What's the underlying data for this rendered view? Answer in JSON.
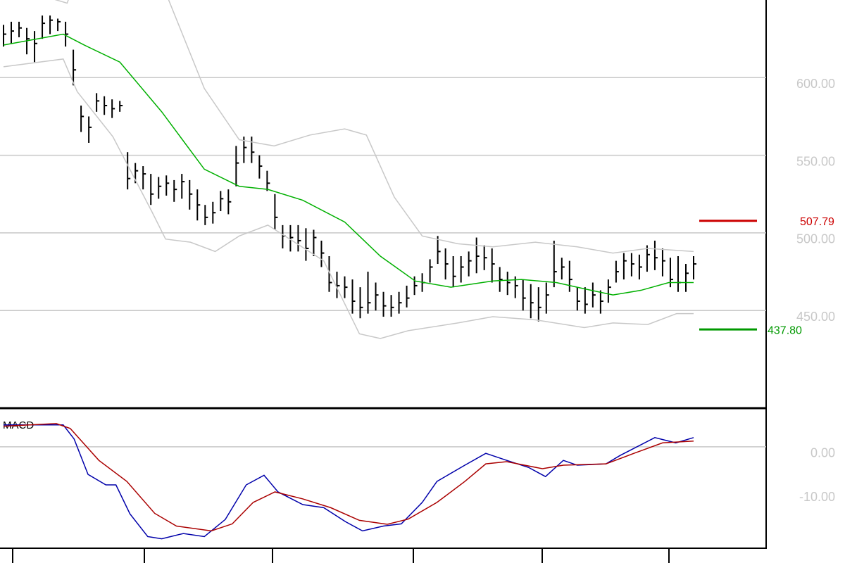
{
  "chart_data": [
    {
      "type": "ohlc",
      "xlim": [
        0,
        89
      ],
      "ylim": [
        388,
        650
      ],
      "yticks": [
        {
          "value": 450,
          "label": "450.00"
        },
        {
          "value": 500,
          "label": "500.00"
        },
        {
          "value": 550,
          "label": "550.00"
        },
        {
          "value": 600,
          "label": "600.00"
        }
      ],
      "grid": true,
      "color": "#000000",
      "high": [
        634,
        636,
        636,
        632,
        630,
        640,
        640,
        638,
        636,
        618,
        582,
        575,
        590,
        588,
        586,
        585,
        552,
        545,
        543,
        538,
        536,
        537,
        534,
        538,
        534,
        528,
        518,
        520,
        527,
        528,
        556,
        562,
        562,
        550,
        540,
        525,
        505,
        505,
        505,
        503,
        502,
        495,
        485,
        475,
        472,
        470,
        465,
        475,
        468,
        462,
        460,
        462,
        466,
        472,
        474,
        483,
        498,
        490,
        485,
        485,
        488,
        497,
        492,
        490,
        478,
        475,
        472,
        470,
        467,
        465,
        468,
        495,
        484,
        482,
        465,
        465,
        468,
        463,
        470,
        482,
        487,
        487,
        486,
        492,
        495,
        490,
        484,
        485,
        480,
        485
      ],
      "low": [
        620,
        622,
        626,
        615,
        610,
        625,
        628,
        630,
        620,
        595,
        565,
        558,
        578,
        576,
        574,
        578,
        528,
        532,
        528,
        518,
        522,
        524,
        520,
        522,
        515,
        508,
        505,
        506,
        514,
        512,
        530,
        545,
        545,
        535,
        527,
        502,
        490,
        488,
        488,
        482,
        485,
        478,
        462,
        458,
        458,
        448,
        445,
        448,
        450,
        446,
        446,
        448,
        452,
        460,
        462,
        468,
        480,
        470,
        465,
        468,
        472,
        474,
        476,
        468,
        462,
        460,
        458,
        450,
        445,
        443,
        448,
        465,
        470,
        462,
        450,
        448,
        452,
        448,
        455,
        468,
        470,
        472,
        470,
        475,
        476,
        472,
        465,
        462,
        462,
        470
      ],
      "close": [
        628,
        630,
        632,
        625,
        622,
        635,
        637,
        636,
        628,
        605,
        575,
        568,
        585,
        582,
        580,
        582,
        535,
        540,
        538,
        525,
        530,
        532,
        528,
        533,
        525,
        518,
        510,
        513,
        522,
        520,
        545,
        555,
        552,
        543,
        532,
        510,
        498,
        497,
        495,
        490,
        497,
        487,
        468,
        466,
        465,
        456,
        452,
        455,
        460,
        453,
        452,
        455,
        458,
        466,
        468,
        478,
        488,
        480,
        472,
        478,
        482,
        485,
        484,
        480,
        470,
        468,
        466,
        458,
        455,
        452,
        460,
        475,
        478,
        470,
        456,
        454,
        460,
        456,
        465,
        475,
        482,
        480,
        478,
        486,
        484,
        482,
        470,
        468,
        474,
        480
      ],
      "lines": [
        {
          "color": "#c8c8c8",
          "x": [
            0,
            8.2,
            9.5,
            20.9,
            21.3,
            25.9,
            30.4,
            34.9,
            39.5,
            44,
            46.8,
            50.4,
            54,
            58.6,
            63.1,
            68.6,
            74,
            78.6,
            83.1,
            89
          ],
          "values": [
            660,
            648,
            665,
            665,
            650,
            593,
            560,
            556,
            563,
            567,
            563,
            523,
            498,
            493,
            491,
            494,
            491,
            487,
            490,
            488
          ]
        },
        {
          "color": "#c8c8c8",
          "x": [
            0,
            7.7,
            9.5,
            14.1,
            19.1,
            20.9,
            24.1,
            27.3,
            30.4,
            34.1,
            41.3,
            45.9,
            48.6,
            52.2,
            58.6,
            63.1,
            68.6,
            74.9,
            78.6,
            83.1,
            86.8,
            89
          ],
          "values": [
            607,
            612,
            591,
            562,
            514,
            496,
            494,
            488,
            498,
            505,
            482,
            435,
            432,
            437,
            442,
            446,
            444,
            439,
            442,
            441,
            448,
            448
          ]
        },
        {
          "color": "#00b000",
          "x": [
            0,
            7.7,
            10.4,
            15,
            20.4,
            25.9,
            30.4,
            34.1,
            38.6,
            44,
            48.6,
            53.1,
            57.7,
            63.1,
            66.8,
            71.3,
            74.9,
            78.6,
            82.2,
            85.8,
            89
          ],
          "values": [
            621,
            628,
            621,
            610,
            578,
            541,
            530,
            528,
            521,
            507,
            485,
            469,
            465,
            469,
            470,
            468,
            464,
            460,
            463,
            468,
            468
          ]
        }
      ],
      "levels": [
        {
          "value": 507.79,
          "label": "507.79",
          "color": "#cc0000"
        },
        {
          "value": 437.8,
          "label": "437.80",
          "color": "#009900"
        }
      ]
    },
    {
      "type": "line",
      "title": "MACD",
      "xlim": [
        0,
        89
      ],
      "ylim": [
        -23,
        8.5
      ],
      "yticks": [
        {
          "value": 0,
          "label": "0.00"
        },
        {
          "value": -10,
          "label": "-10.00"
        }
      ],
      "zero_line": true,
      "series": [
        {
          "color": "#0000aa",
          "x": [
            0,
            7.7,
            9.1,
            10.9,
            13.2,
            14.5,
            16.3,
            18.6,
            20.4,
            23.2,
            25.9,
            28.6,
            31.3,
            33.6,
            35.4,
            38.6,
            41.3,
            44.1,
            46.3,
            49,
            51.3,
            54,
            55.9,
            59.5,
            62.2,
            64.9,
            67.7,
            69.9,
            72.2,
            74,
            77.7,
            79.5,
            84,
            86.7,
            89
          ],
          "values": [
            5,
            5,
            1.8,
            -6.3,
            -8.7,
            -8.7,
            -15.3,
            -20.5,
            -21,
            -19.8,
            -20.5,
            -16.6,
            -8.7,
            -6.5,
            -10.3,
            -13.2,
            -13.9,
            -17.1,
            -19.2,
            -18.1,
            -17.6,
            -12.7,
            -7.9,
            -4.2,
            -1.5,
            -3.1,
            -4.7,
            -6.8,
            -3.1,
            -4.2,
            -3.9,
            -2,
            2.1,
            0.9,
            2.1
          ]
        },
        {
          "color": "#aa0000",
          "x": [
            0,
            6.8,
            8.6,
            12.3,
            15.9,
            19.5,
            22.3,
            26.8,
            29.5,
            32.2,
            35,
            38.6,
            42.2,
            45.9,
            49.5,
            52.2,
            55.9,
            59.5,
            62.2,
            64.9,
            69.5,
            72.2,
            77.7,
            81.3,
            85,
            89
          ],
          "values": [
            4.7,
            5.3,
            4.2,
            -3.1,
            -7.9,
            -15.2,
            -18.1,
            -19.2,
            -17.6,
            -12.7,
            -10.3,
            -11.9,
            -13.9,
            -16.8,
            -17.7,
            -16.5,
            -12.7,
            -7.9,
            -3.9,
            -3.4,
            -5,
            -4.2,
            -3.9,
            -1.5,
            0.9,
            1.3
          ]
        }
      ]
    }
  ]
}
